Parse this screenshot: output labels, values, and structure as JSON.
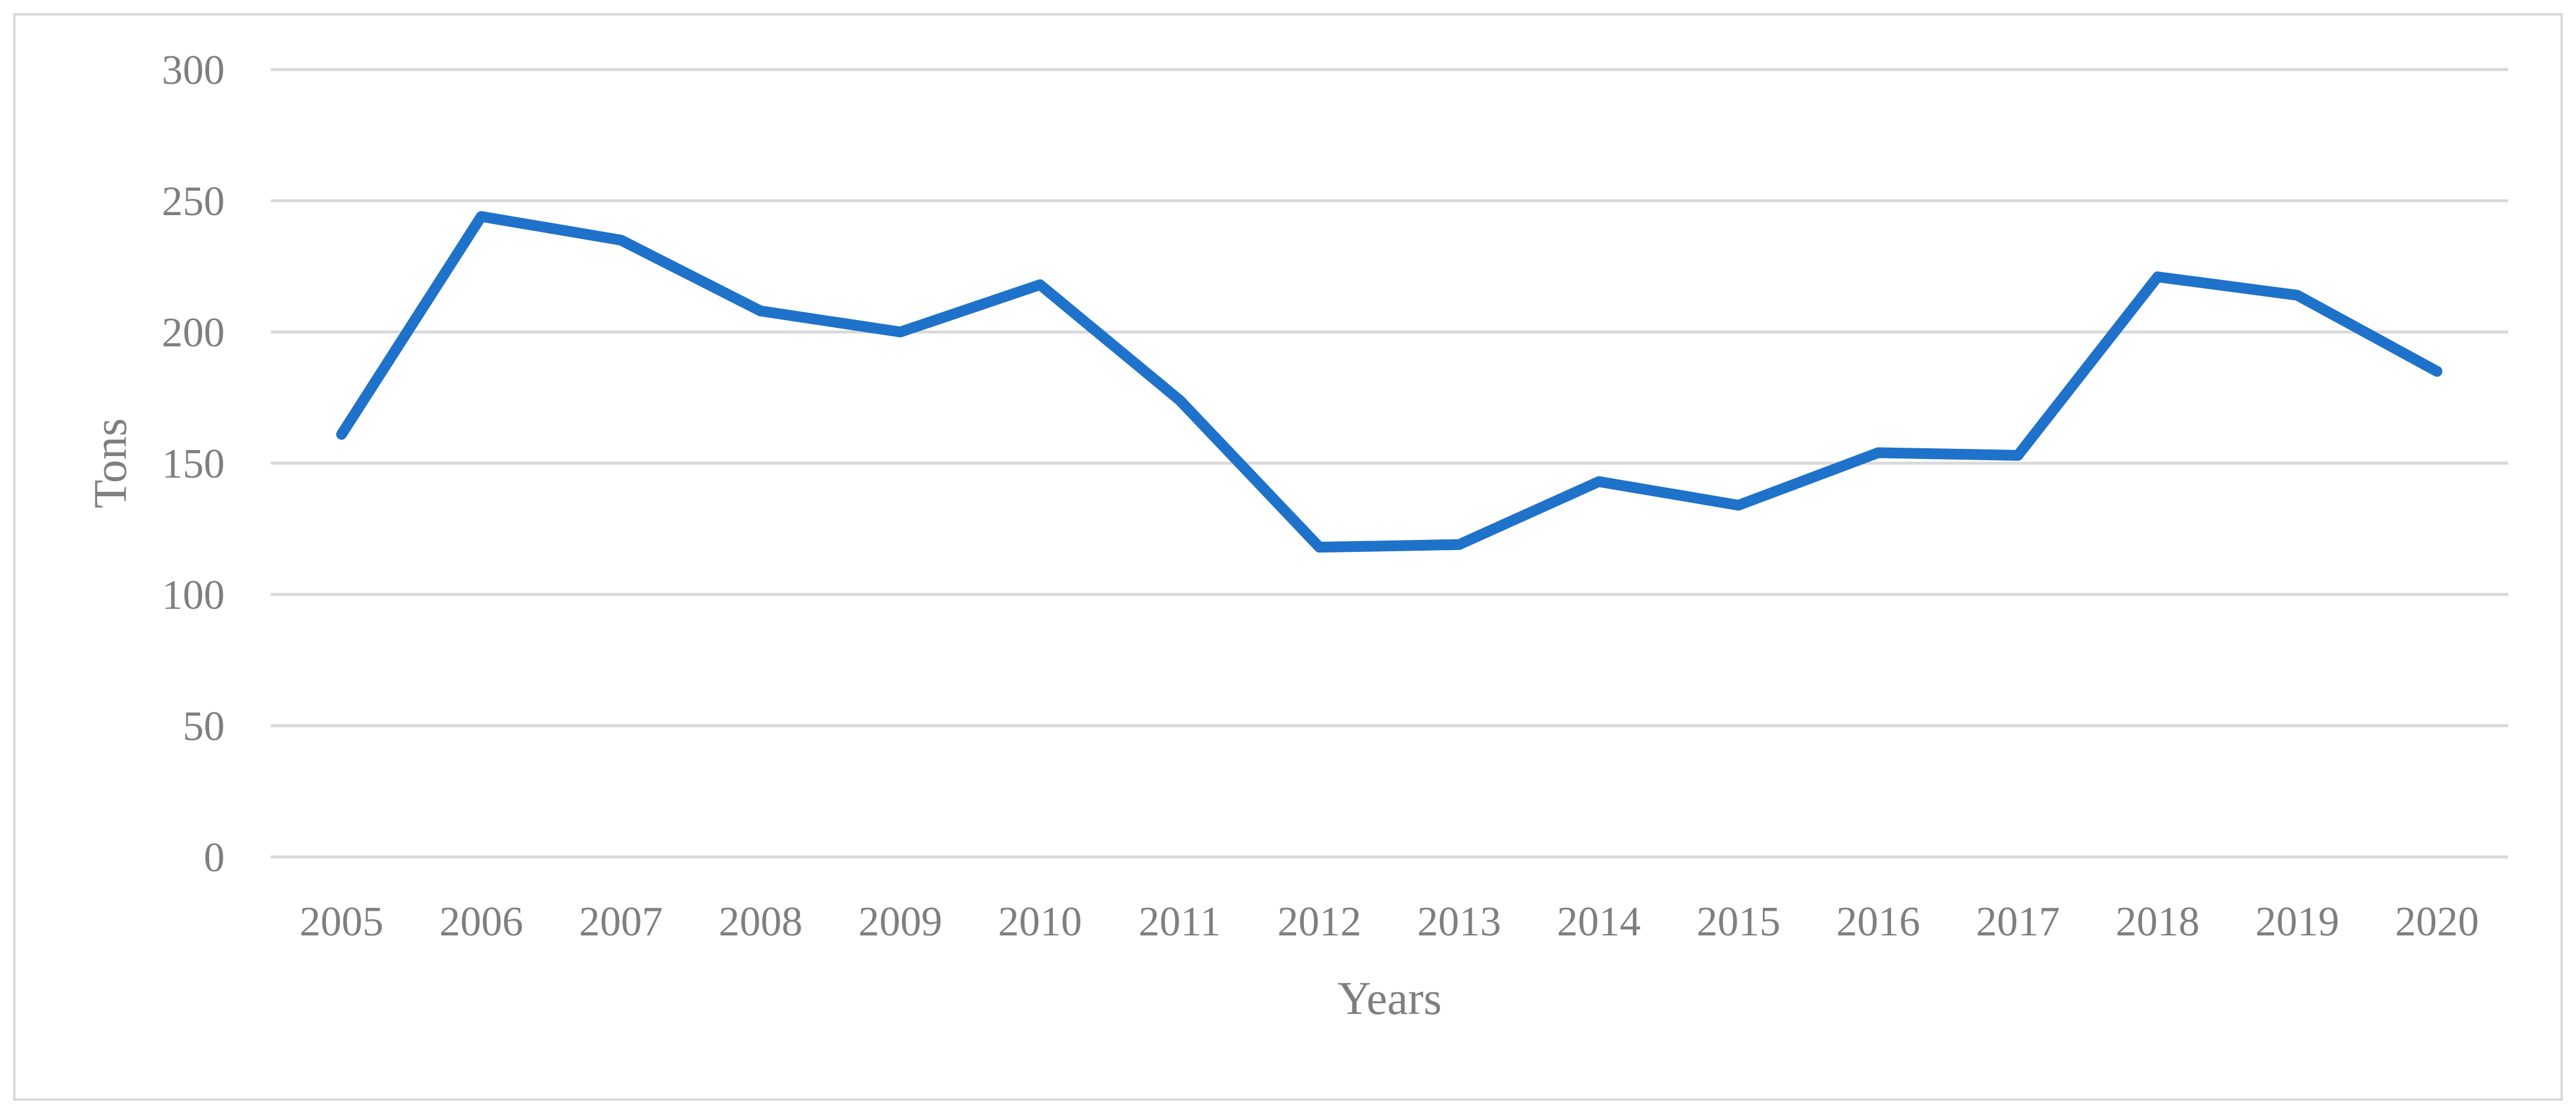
{
  "chart_data": {
    "type": "line",
    "title": "",
    "xlabel": "Years",
    "ylabel": "Tons",
    "categories": [
      "2005",
      "2006",
      "2007",
      "2008",
      "2009",
      "2010",
      "2011",
      "2012",
      "2013",
      "2014",
      "2015",
      "2016",
      "2017",
      "2018",
      "2019",
      "2020"
    ],
    "series": [
      {
        "values": [
          161,
          244,
          235,
          208,
          200,
          218,
          174,
          118,
          119,
          143,
          134,
          154,
          153,
          221,
          214,
          185
        ],
        "color": "#1f72c9"
      }
    ],
    "ylim": [
      0,
      300
    ],
    "yticks": [
      0,
      50,
      100,
      150,
      200,
      250,
      300
    ],
    "grid": true,
    "legend": "none"
  }
}
